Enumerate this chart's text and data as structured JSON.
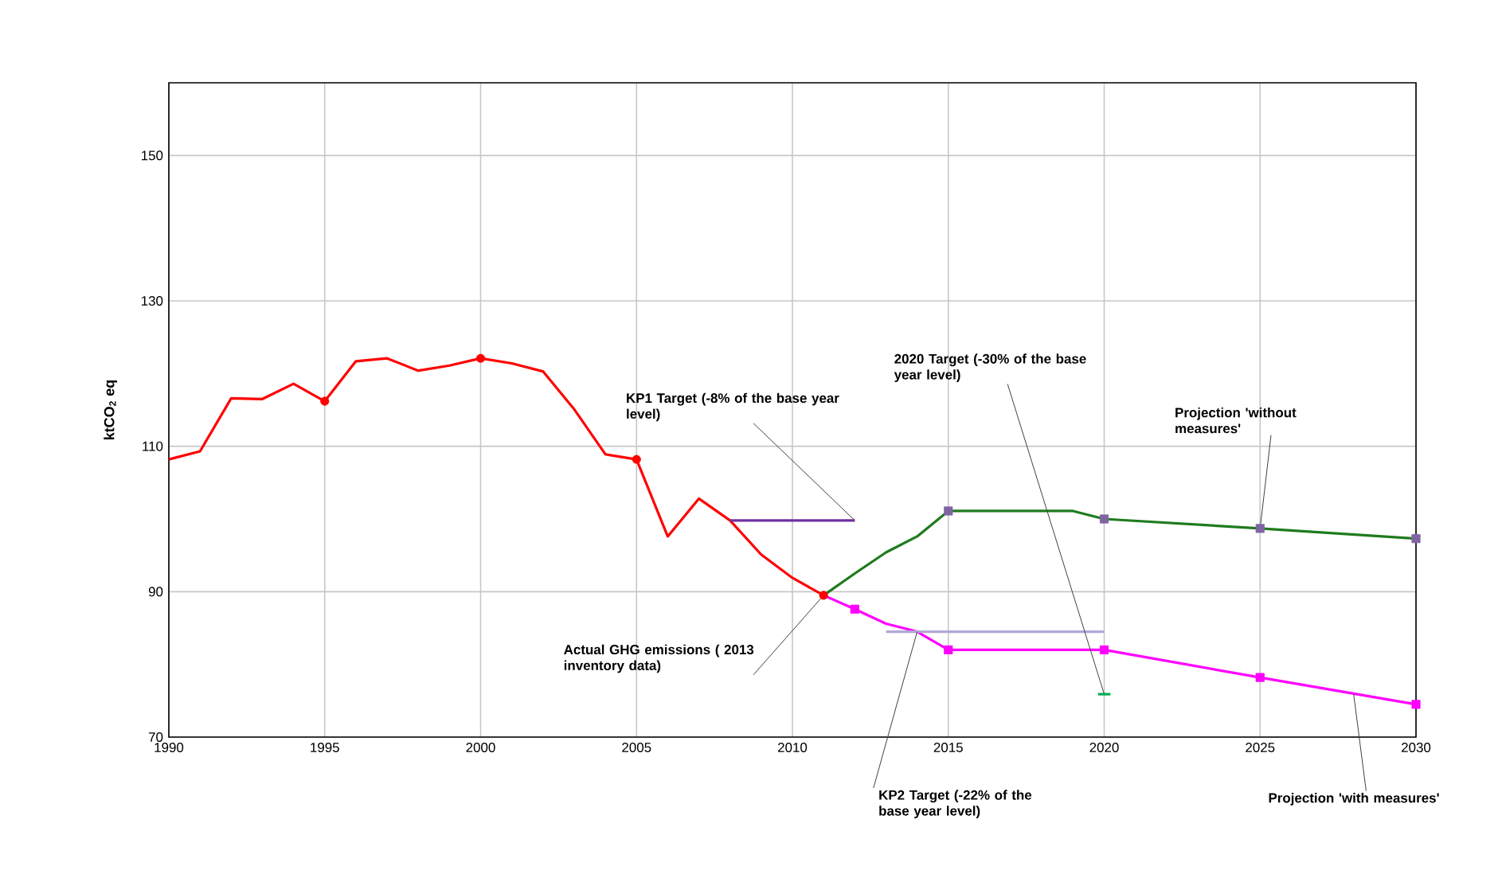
{
  "chart_data": {
    "type": "line",
    "ylabel": "ktCO$_{2}$ eq",
    "xlim": [
      1990,
      2030
    ],
    "ylim": [
      70,
      160
    ],
    "xticks": [
      1990,
      1995,
      2000,
      2005,
      2010,
      2015,
      2020,
      2025,
      2030
    ],
    "yticks": [
      70,
      90,
      110,
      130,
      150
    ],
    "grid": true,
    "series": [
      {
        "type": "line",
        "color": "#ff0000",
        "marker": "none",
        "line_style": "solid",
        "x": [
          1990,
          1991,
          1992,
          1993,
          1994,
          1995,
          1996,
          1997,
          1998,
          1999,
          2000,
          2001,
          2002,
          2003,
          2004,
          2005,
          2006,
          2007,
          2008,
          2009,
          2010,
          2011
        ],
        "values": [
          108.2,
          109.3,
          116.6,
          116.5,
          118.6,
          116.2,
          121.7,
          122.1,
          120.4,
          121.1,
          122.1,
          121.4,
          120.3,
          115.1,
          108.9,
          108.2,
          97.6,
          102.8,
          99.8,
          95.1,
          91.9,
          89.5
        ]
      },
      {
        "type": "line",
        "color": "#1e7b1e",
        "marker": "none",
        "line_style": "solid",
        "x": [
          2011,
          2012,
          2013,
          2014,
          2015,
          2016,
          2017,
          2018,
          2019,
          2020,
          2025,
          2030
        ],
        "values": [
          89.5,
          92.5,
          95.4,
          97.6,
          101.1,
          101.1,
          101.1,
          101.1,
          101.1,
          100.0,
          98.7,
          97.3
        ]
      },
      {
        "type": "line",
        "color": "#ff00ff",
        "marker": "none",
        "line_style": "solid",
        "x": [
          2011,
          2012,
          2013,
          2014,
          2015,
          2016,
          2017,
          2018,
          2019,
          2020,
          2025,
          2030
        ],
        "values": [
          89.5,
          87.6,
          85.6,
          84.5,
          82.0,
          82.0,
          82.0,
          82.0,
          82.0,
          82.0,
          78.2,
          74.5
        ]
      },
      {
        "type": "line",
        "color": "#7030a0",
        "marker": "none",
        "line_style": "solid",
        "x": [
          2008,
          2012
        ],
        "values": [
          99.8,
          99.8
        ]
      },
      {
        "type": "line",
        "color": "#b4a7d6",
        "marker": "none",
        "line_style": "solid",
        "x": [
          2013,
          2020
        ],
        "values": [
          84.5,
          84.5
        ]
      },
      {
        "type": "line",
        "color": "#00b050",
        "marker": "none",
        "line_style": "solid",
        "x": [
          2019.8,
          2020.2
        ],
        "values": [
          75.9,
          75.9
        ]
      },
      {
        "type": "scatter",
        "color": "#ff0000",
        "marker": "circle",
        "x": [
          1995,
          2000,
          2005,
          2011
        ],
        "values": [
          116.2,
          122.1,
          108.2,
          89.5
        ]
      },
      {
        "type": "scatter",
        "color": "#8064a2",
        "marker": "square",
        "x": [
          2015,
          2020,
          2025,
          2030
        ],
        "values": [
          101.1,
          100.0,
          98.7,
          97.3
        ]
      },
      {
        "type": "scatter",
        "color": "#ff00ff",
        "marker": "square",
        "x": [
          2012,
          2015,
          2020,
          2025,
          2030
        ],
        "values": [
          87.6,
          82.0,
          82.0,
          78.2,
          74.5
        ]
      }
    ],
    "annotations": [
      {
        "text": "KP1 Target (-8% of the base year level)",
        "x": 2012,
        "y": 99.8
      },
      {
        "text": "Actual GHG emissions ( 2013 inventory data)",
        "x": 2011,
        "y": 89.5
      },
      {
        "text": "2020 Target (-30% of the base year level)",
        "x": 2020,
        "y": 75.9
      },
      {
        "text": "Projection 'without measures'",
        "x": 2025,
        "y": 98.7
      },
      {
        "text": "KP2 Target (-22% of the base year level)",
        "x": 2014,
        "y": 84.5
      },
      {
        "text": "Projection 'with measures'",
        "x": 2028,
        "y": 75.9
      }
    ]
  }
}
